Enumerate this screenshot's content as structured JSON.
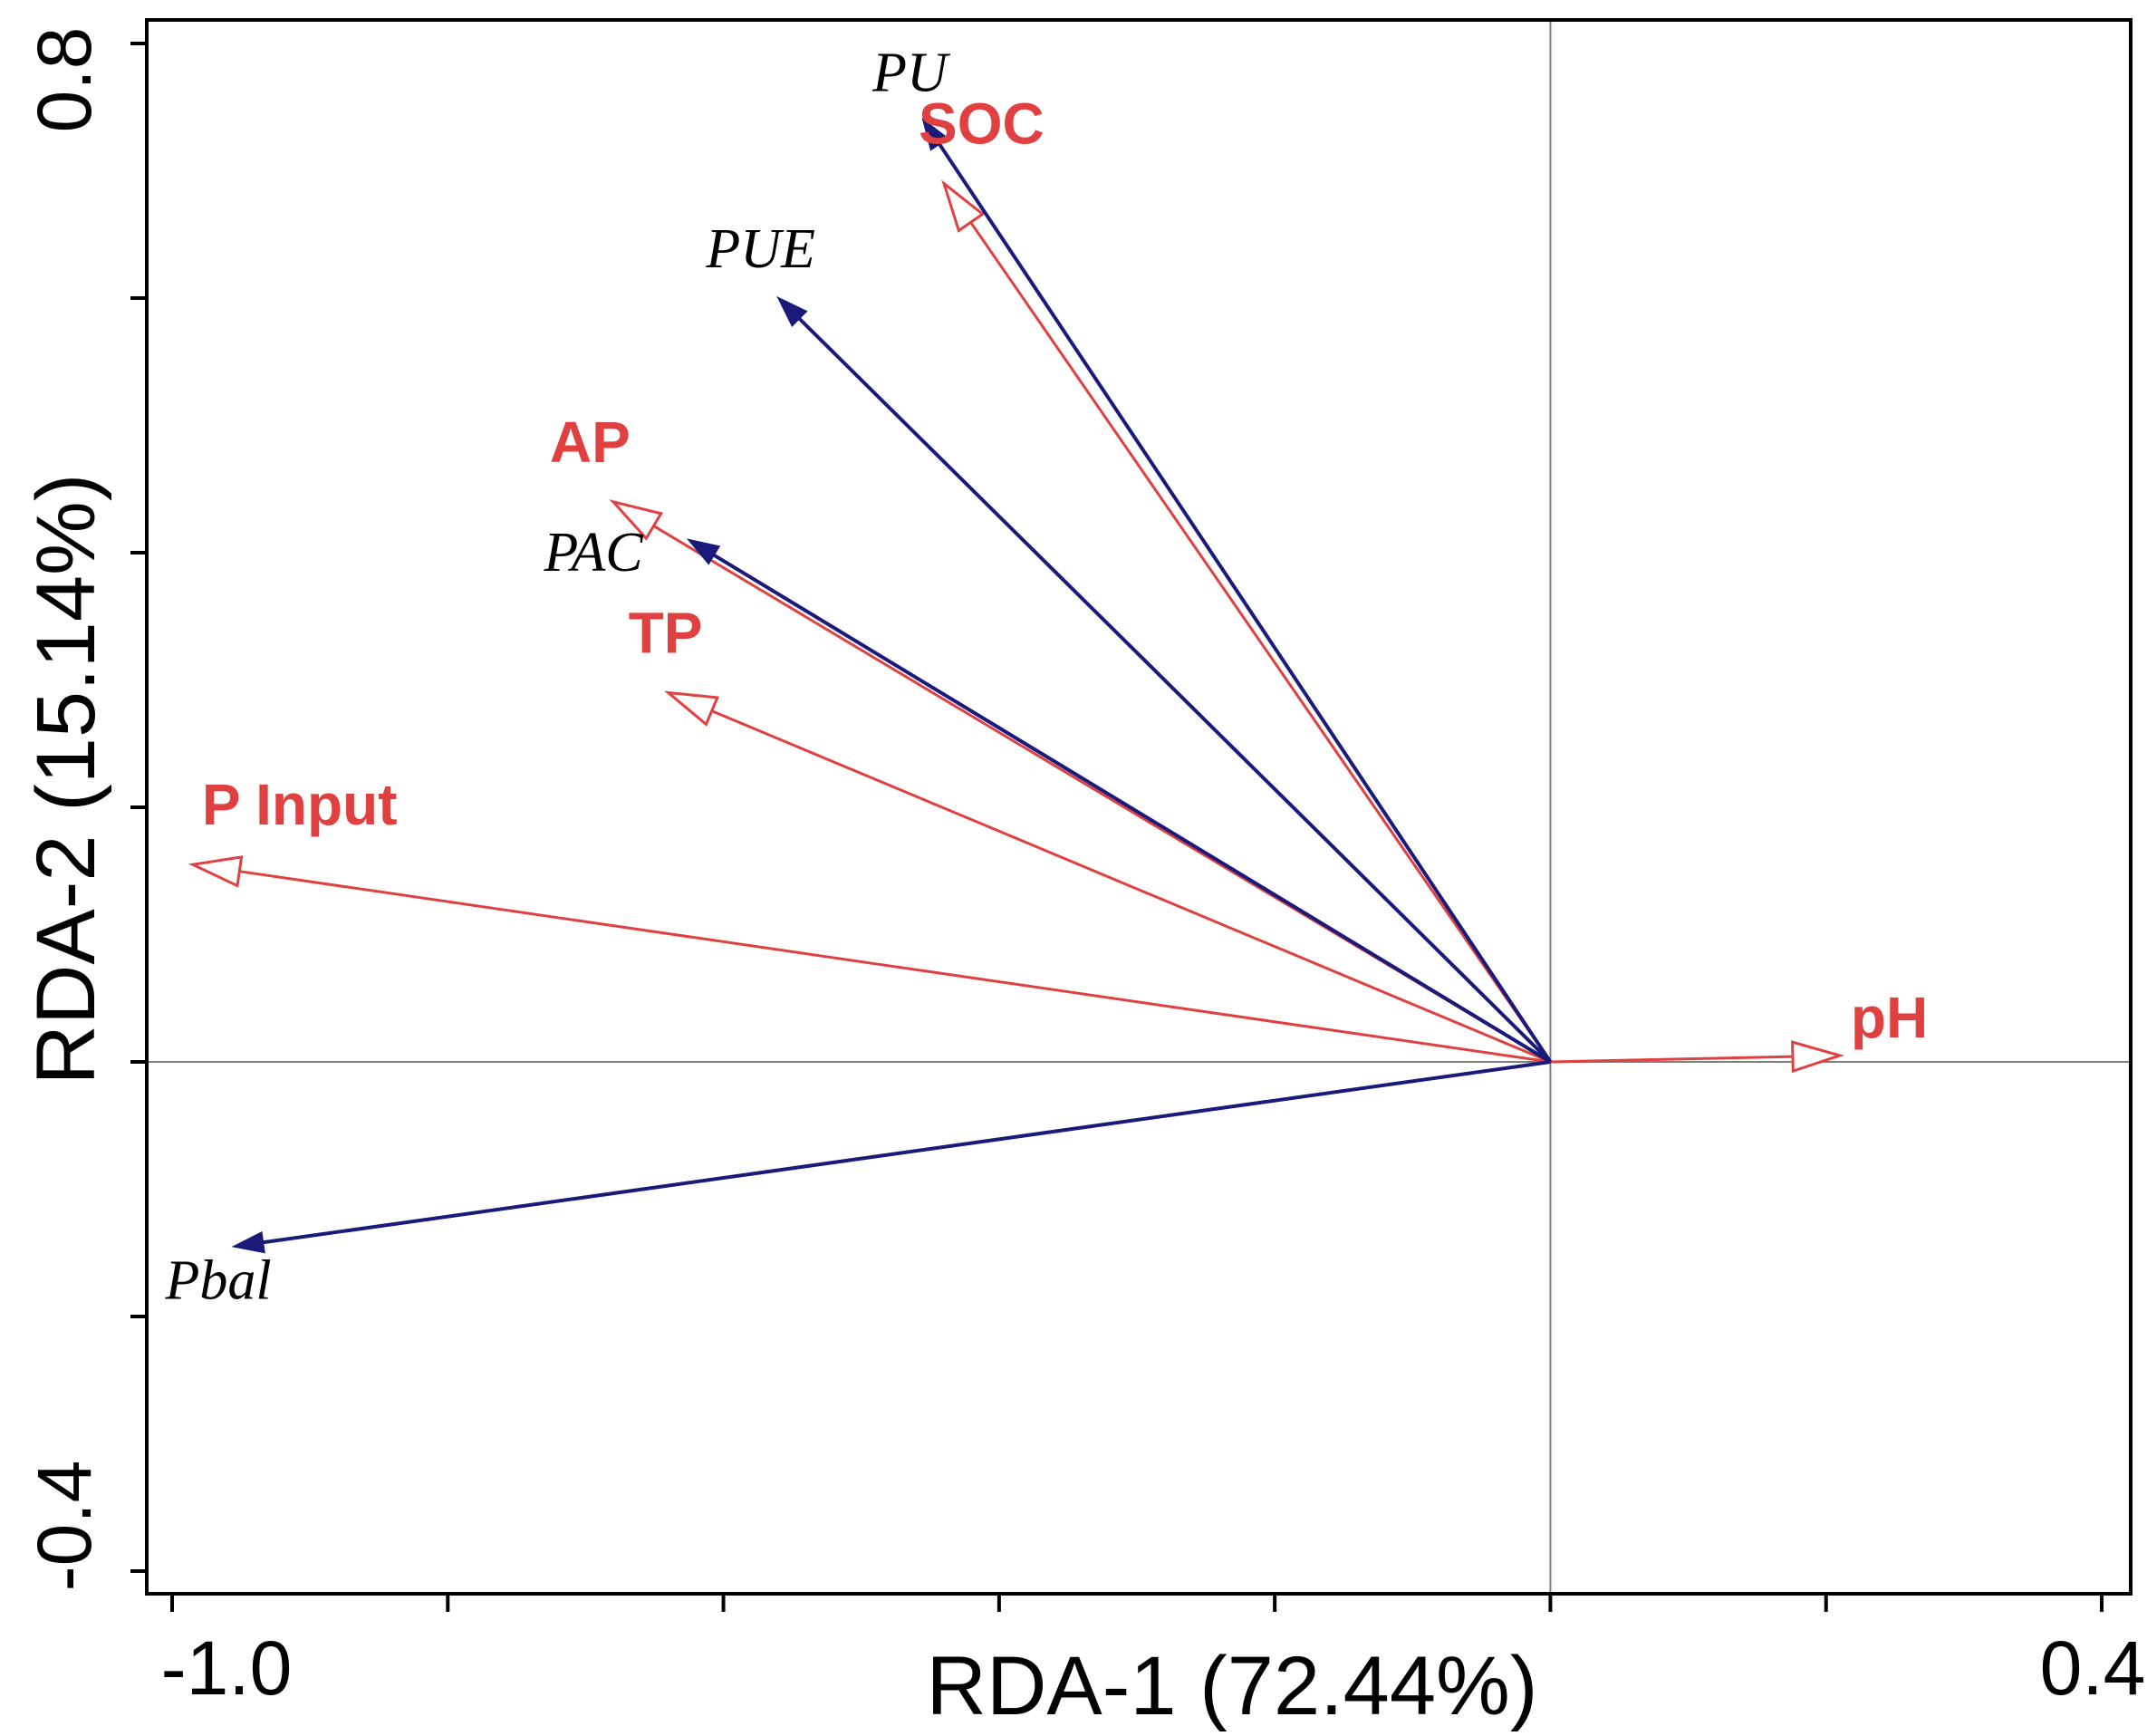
{
  "chart_data": {
    "type": "biplot",
    "xlabel": "RDA-1 (72.44%)",
    "ylabel": "RDA-2 (15.14%)",
    "xlim": [
      -1.0,
      0.4
    ],
    "ylim": [
      -0.4,
      0.8
    ],
    "x_tick_labels": [
      "-1.0",
      "0.4"
    ],
    "y_tick_labels": [
      "-0.4",
      "0.8"
    ],
    "x_ticks": [
      -1.0,
      -0.8,
      -0.6,
      -0.4,
      -0.2,
      0.0,
      0.2,
      0.4
    ],
    "y_ticks": [
      -0.4,
      -0.2,
      0.0,
      0.2,
      0.4,
      0.6,
      0.8
    ],
    "reference_lines": {
      "x": 0.0,
      "y": 0.0
    },
    "environmental_vectors": [
      {
        "name": "SOC",
        "x": -0.44,
        "y": 0.69
      },
      {
        "name": "AP",
        "x": -0.68,
        "y": 0.44
      },
      {
        "name": "TP",
        "x": -0.64,
        "y": 0.29
      },
      {
        "name": "P Input",
        "x": -0.985,
        "y": 0.155
      },
      {
        "name": "pH",
        "x": 0.21,
        "y": 0.005
      }
    ],
    "response_vectors": [
      {
        "name": "PU",
        "x": -0.455,
        "y": 0.74
      },
      {
        "name": "PUE",
        "x": -0.56,
        "y": 0.6
      },
      {
        "name": "PAC",
        "x": -0.625,
        "y": 0.41
      },
      {
        "name": "Pbal",
        "x": -0.955,
        "y": -0.145
      }
    ],
    "colors": {
      "environmental": "#e04040",
      "response": "#1a1a7a",
      "axes": "#000000",
      "reference": "#7f7f7f"
    }
  }
}
